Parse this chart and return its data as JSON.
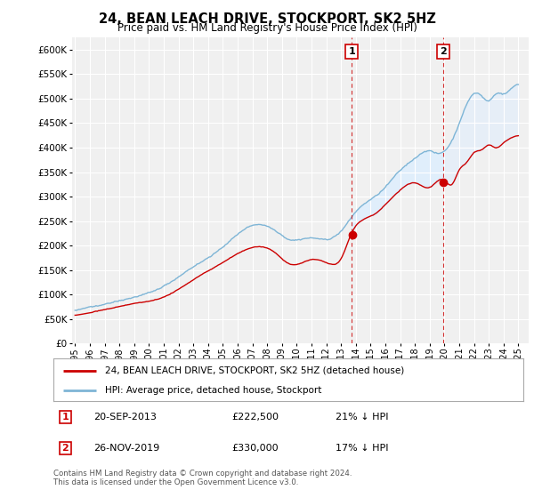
{
  "title": "24, BEAN LEACH DRIVE, STOCKPORT, SK2 5HZ",
  "subtitle": "Price paid vs. HM Land Registry's House Price Index (HPI)",
  "legend_line1": "24, BEAN LEACH DRIVE, STOCKPORT, SK2 5HZ (detached house)",
  "legend_line2": "HPI: Average price, detached house, Stockport",
  "footnote": "Contains HM Land Registry data © Crown copyright and database right 2024.\nThis data is licensed under the Open Government Licence v3.0.",
  "annotation1_label": "1",
  "annotation1_date": "20-SEP-2013",
  "annotation1_price": "£222,500",
  "annotation1_hpi": "21% ↓ HPI",
  "annotation2_label": "2",
  "annotation2_date": "26-NOV-2019",
  "annotation2_price": "£330,000",
  "annotation2_hpi": "17% ↓ HPI",
  "sale1_year": 2013.72,
  "sale1_value": 222500,
  "sale2_year": 2019.92,
  "sale2_value": 330000,
  "ylim": [
    0,
    625000
  ],
  "xlim_start": 1994.8,
  "xlim_end": 2025.7,
  "hpi_color": "#7eb5d6",
  "sale_color": "#cc0000",
  "shade_color": "#ddeeff",
  "vline_color": "#cc0000",
  "bg_color": "#ffffff",
  "plot_bg_color": "#f0f0f0",
  "grid_color": "#ffffff",
  "box_facecolor": "#ffffff",
  "box_edgecolor": "#cc0000"
}
